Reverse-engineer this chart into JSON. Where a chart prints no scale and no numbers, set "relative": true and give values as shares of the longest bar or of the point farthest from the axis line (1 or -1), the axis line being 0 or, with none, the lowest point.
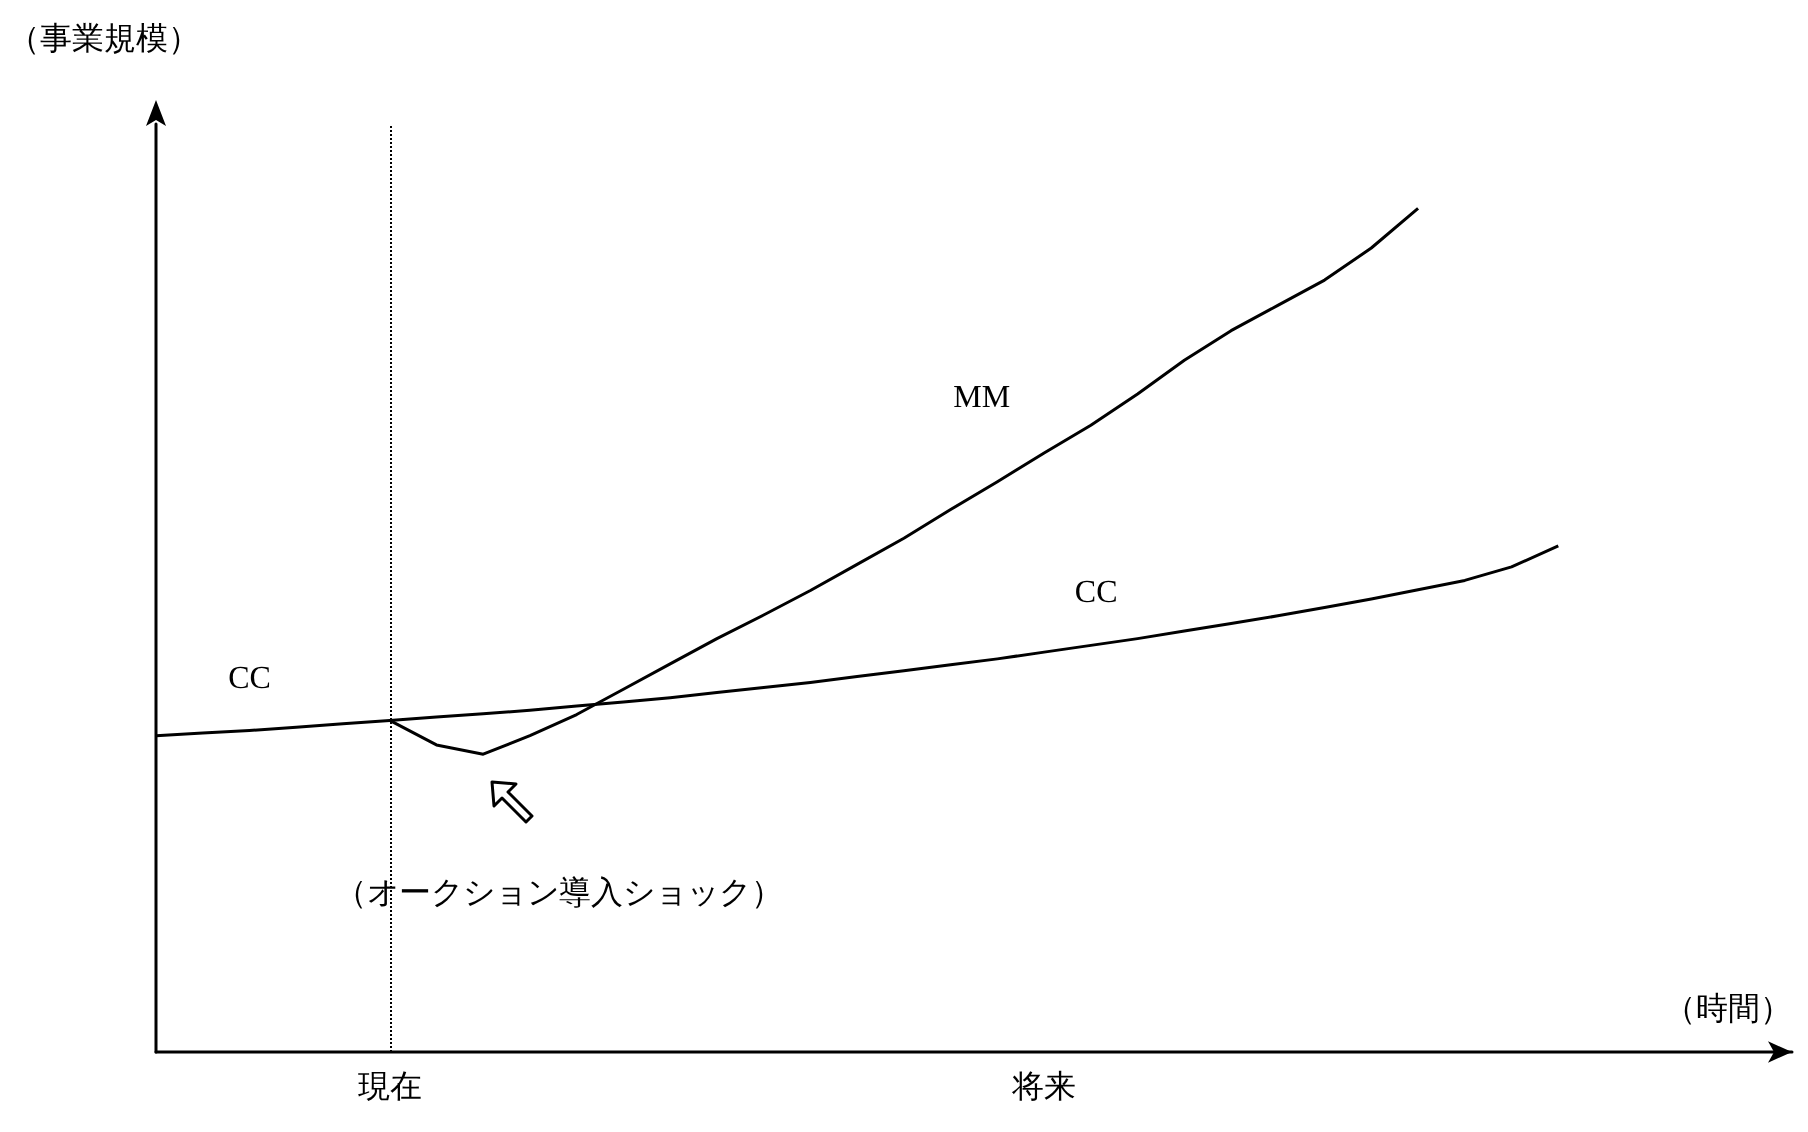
{
  "chart_data": {
    "type": "line",
    "relative": true,
    "xlabel": "（時間）",
    "ylabel": "（事業規模）",
    "categories": [
      null,
      null,
      null,
      null,
      null,
      "現在",
      null,
      null,
      null,
      null,
      null,
      null,
      null,
      null,
      null,
      null,
      null,
      null,
      null,
      "将来",
      null,
      null,
      null,
      null,
      null,
      null,
      null,
      null,
      null,
      null,
      null,
      null,
      null,
      null,
      null,
      null
    ],
    "series": [
      {
        "name": "CC",
        "color": "#000000",
        "values": [
          0.375,
          0.378,
          0.381,
          0.385,
          0.389,
          0.393,
          0.397,
          0.401,
          0.405,
          0.41,
          0.415,
          0.42,
          0.426,
          0.432,
          0.438,
          0.445,
          0.452,
          0.459,
          0.466,
          0.474,
          0.482,
          0.49,
          0.499,
          0.508,
          0.517,
          0.527,
          0.537,
          0.548,
          0.559,
          0.575,
          0.6,
          null,
          null,
          null,
          null,
          null
        ]
      },
      {
        "name": "MM",
        "color": "#000000",
        "values": [
          null,
          null,
          null,
          null,
          null,
          0.393,
          0.364,
          0.353,
          0.375,
          0.4,
          0.43,
          0.46,
          0.49,
          0.518,
          0.547,
          0.578,
          0.609,
          0.643,
          0.676,
          0.71,
          0.743,
          0.78,
          0.82,
          0.855,
          0.885,
          0.915,
          0.953,
          1,
          null,
          null,
          null,
          null,
          null,
          null,
          null,
          null
        ]
      }
    ],
    "annotations": [
      "CC",
      "（オークション導入ショック）"
    ],
    "ref_lines": [
      {
        "axis": "x",
        "value": "現在",
        "line_style": "dotted",
        "color": "#000000"
      }
    ],
    "legend": false,
    "grid": false,
    "marker": "none",
    "line_style": "solid"
  }
}
